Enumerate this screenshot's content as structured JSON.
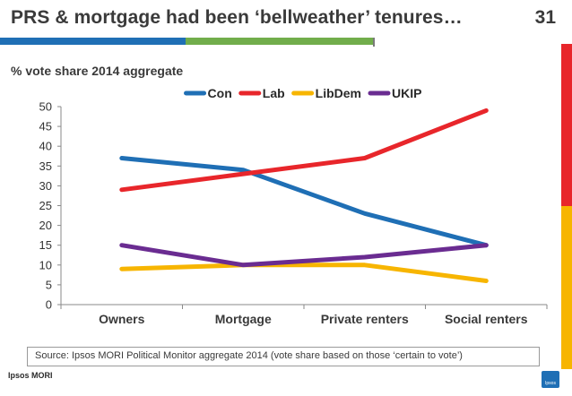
{
  "slide": {
    "title": "PRS & mortgage had been ‘bellweather’ tenures…",
    "number": "31",
    "subtitle": "% vote share 2014 aggregate",
    "source": "Source:  Ipsos MORI Political Monitor aggregate 2014 (vote share based on those ‘certain to vote’)",
    "logo_text": "Ipsos MORI",
    "logo_badge_text": "Ipsos"
  },
  "colors": {
    "top_bar_blue": "#1f6fb5",
    "top_bar_green": "#71ad4b",
    "side_bar_red": "#e8262b",
    "side_bar_yellow": "#f7b500"
  },
  "chart_data": {
    "type": "line",
    "title": "",
    "xlabel": "",
    "ylabel": "",
    "categories": [
      "Owners",
      "Mortgage",
      "Private renters",
      "Social renters"
    ],
    "ylim": [
      0,
      50
    ],
    "yticks": [
      0,
      5,
      10,
      15,
      20,
      25,
      30,
      35,
      40,
      45,
      50
    ],
    "grid": false,
    "legend": "top-center",
    "series": [
      {
        "name": "Con",
        "color": "#1f6fb5",
        "values": [
          37,
          34,
          23,
          15
        ]
      },
      {
        "name": "Lab",
        "color": "#e8262b",
        "values": [
          29,
          33,
          37,
          49
        ]
      },
      {
        "name": "LibDem",
        "color": "#f7b500",
        "values": [
          9,
          10,
          10,
          6
        ]
      },
      {
        "name": "UKIP",
        "color": "#6a2c91",
        "values": [
          15,
          10,
          12,
          15
        ]
      }
    ]
  }
}
